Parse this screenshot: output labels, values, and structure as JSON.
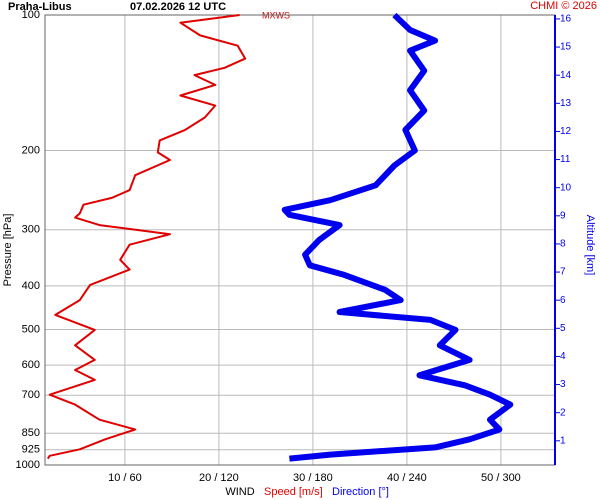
{
  "chart_data": {
    "type": "profile",
    "station": "Praha-Libus",
    "time": "07.02.2026 12 UTC",
    "credit": "CHMI © 2026",
    "mark": "MXWS",
    "ylabel": "Pressure [hPa]",
    "y2label": "Altitude [km]",
    "xlabel": "WIND",
    "ylog": true,
    "ylim": [
      100,
      1000
    ],
    "yticks": [
      100,
      200,
      300,
      400,
      500,
      600,
      700,
      850,
      925,
      1000
    ],
    "y2lim": [
      0.14,
      16.14
    ],
    "y2ticks": [
      1,
      2,
      3,
      4,
      5,
      6,
      7,
      8,
      9,
      10,
      11,
      12,
      13,
      14,
      15,
      16
    ],
    "xlim": [
      1.5,
      55.75
    ],
    "x2lim": [
      9,
      334.5
    ],
    "xticks": [
      {
        "value": 10,
        "label": "10 / 60"
      },
      {
        "value": 20,
        "label": "20 / 120"
      },
      {
        "value": 30,
        "label": "30 / 180"
      },
      {
        "value": 40,
        "label": "40 / 240"
      },
      {
        "value": 50,
        "label": "50 / 300"
      }
    ],
    "grid": true,
    "series": [
      {
        "name": "Speed [m/s]",
        "color": "#e00000",
        "axis": "x",
        "width": 2,
        "pressure": [
          100,
          104,
          111,
          117,
          125,
          131,
          136,
          143,
          151,
          159,
          169,
          180,
          190,
          202,
          210,
          227,
          245,
          255,
          264,
          276,
          282,
          293,
          307,
          324,
          350,
          368,
          398,
          430,
          464,
          501,
          542,
          584,
          615,
          647,
          698,
          734,
          793,
          834,
          877,
          923,
          954,
          968
        ],
        "values": [
          22.2,
          15.9,
          18.0,
          22.0,
          22.8,
          20.6,
          17.4,
          19.6,
          15.9,
          19.6,
          18.5,
          16.4,
          13.7,
          13.5,
          14.8,
          11.1,
          10.5,
          8.6,
          5.6,
          5.2,
          4.7,
          7.3,
          14.8,
          10.5,
          9.5,
          10.5,
          6.3,
          5.2,
          2.6,
          6.8,
          4.7,
          6.8,
          4.7,
          6.8,
          2.0,
          4.7,
          7.3,
          11.1,
          7.9,
          5.2,
          2.0,
          1.8
        ]
      },
      {
        "name": "Direction [°]",
        "color": "#0000ee",
        "axis": "x2",
        "width": 6,
        "pressure": [
          100,
          108,
          114,
          120,
          133,
          147,
          163,
          180,
          200,
          216,
          239,
          258,
          271,
          278,
          293,
          316,
          341,
          360,
          378,
          408,
          430,
          457,
          476,
          501,
          542,
          584,
          632,
          665,
          698,
          734,
          793,
          834,
          877,
          914,
          948,
          968
        ],
        "values": [
          232,
          242,
          258,
          242,
          251,
          242,
          251,
          239,
          245,
          232,
          220,
          191,
          162,
          165,
          197,
          184,
          175,
          178,
          200,
          226,
          236,
          197,
          255,
          271,
          261,
          280,
          248,
          277,
          293,
          306,
          293,
          299,
          280,
          258,
          191,
          165
        ]
      }
    ]
  }
}
